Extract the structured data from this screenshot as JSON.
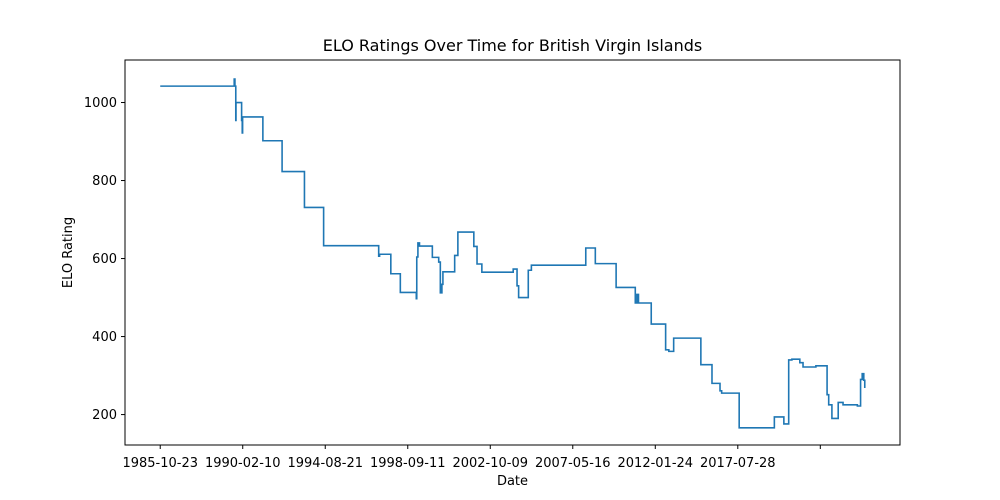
{
  "chart_data": {
    "type": "line",
    "title": "ELO Ratings Over Time for British Virgin Islands",
    "xlabel": "Date",
    "ylabel": "ELO Rating",
    "x_ticks": [
      "1985-10-23",
      "1990-02-10",
      "1994-08-21",
      "1998-09-11",
      "2002-10-09",
      "2007-05-16",
      "2012-01-24",
      "2017-07-28",
      ""
    ],
    "y_ticks": [
      200,
      400,
      600,
      800,
      1000
    ],
    "ylim": [
      122,
      1109
    ],
    "grid": false,
    "legend": "none",
    "line_color": "#1f77b4",
    "series": [
      {
        "x": [
          "1985-10-23",
          "1989-09-01",
          "1989-09-15",
          "1989-10-01",
          "1989-10-05",
          "1990-01-20",
          "1990-02-01",
          "1990-02-08",
          "1990-02-15",
          "1991-03-01",
          "1992-03-01",
          "1993-05-01",
          "1994-05-01",
          "1997-03-01",
          "1997-03-15",
          "1997-04-01",
          "1997-11-01",
          "1998-05-01",
          "1999-03-01",
          "1999-03-10",
          "1999-04-01",
          "1999-05-01",
          "2000-01-01",
          "2000-05-01",
          "2000-06-01",
          "2000-07-01",
          "2000-07-20",
          "2001-02-01",
          "2001-03-01",
          "2001-05-01",
          "2002-03-01",
          "2002-05-01",
          "2002-08-01",
          "2004-03-01",
          "2004-03-20",
          "2004-06-01",
          "2004-07-01",
          "2004-08-01",
          "2005-01-01",
          "2005-03-01",
          "2007-08-01",
          "2008-01-01",
          "2008-07-01",
          "2009-08-01",
          "2010-08-01",
          "2010-09-01",
          "2010-10-01",
          "2011-06-01",
          "2012-03-01",
          "2012-05-01",
          "2012-06-01",
          "2012-08-01",
          "2014-01-01",
          "2014-05-01",
          "2014-08-01",
          "2015-01-01",
          "2015-02-01",
          "2016-01-01",
          "2017-11-01",
          "2018-05-01",
          "2018-08-01",
          "2018-10-01",
          "2019-03-01",
          "2019-05-01",
          "2020-01-01",
          "2020-08-01",
          "2020-09-01",
          "2020-11-01",
          "2021-03-01",
          "2021-06-01",
          "2022-03-01",
          "2022-05-01",
          "2022-06-01",
          "2022-07-01",
          "2022-07-20"
        ],
        "y": [
          1042,
          1060,
          1042,
          954,
          1000,
          954,
          922,
          963,
          963,
          902,
          823,
          731,
          633,
          633,
          606,
          611,
          561,
          513,
          497,
          604,
          640,
          632,
          603,
          591,
          512,
          534,
          566,
          566,
          608,
          668,
          631,
          586,
          565,
          565,
          573,
          530,
          500,
          500,
          570,
          583,
          583,
          627,
          587,
          526,
          486,
          508,
          486,
          432,
          366,
          362,
          362,
          396,
          328,
          328,
          280,
          261,
          255,
          166,
          194,
          176,
          340,
          342,
          333,
          322,
          325,
          251,
          225,
          190,
          231,
          225,
          222,
          290,
          305,
          288,
          268
        ]
      }
    ]
  }
}
